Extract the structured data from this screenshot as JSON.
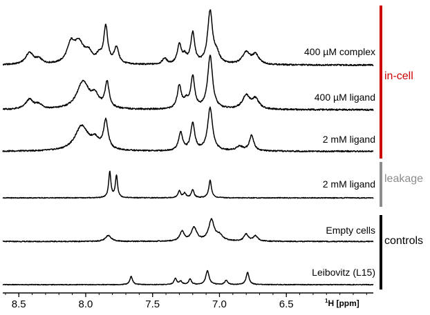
{
  "chart_data": {
    "type": "line",
    "title": "",
    "xlabel_superscript": "1",
    "xlabel": "H [ppm]",
    "xlim": [
      8.62,
      5.85
    ],
    "x_reversed": true,
    "x_ticks": [
      "8.5",
      "8.0",
      "7.5",
      "7.0",
      "6.5"
    ],
    "x_tick_values": [
      8.5,
      8.0,
      7.5,
      7.0,
      6.5
    ],
    "y_axis_shown": false,
    "grid": false,
    "series": [
      {
        "name": "400 µM complex",
        "group": "in-cell",
        "baseline": 0.03,
        "peaks": [
          [
            8.42,
            0.2,
            0.035
          ],
          [
            8.35,
            0.08,
            0.03
          ],
          [
            8.11,
            0.33,
            0.035
          ],
          [
            8.05,
            0.32,
            0.04
          ],
          [
            7.98,
            0.18,
            0.035
          ],
          [
            7.9,
            0.12,
            0.025
          ],
          [
            7.85,
            0.62,
            0.018
          ],
          [
            7.77,
            0.28,
            0.02
          ],
          [
            7.41,
            0.1,
            0.02
          ],
          [
            7.3,
            0.32,
            0.018
          ],
          [
            7.26,
            0.12,
            0.02
          ],
          [
            7.2,
            0.52,
            0.018
          ],
          [
            7.07,
            0.9,
            0.022
          ],
          [
            7.02,
            0.15,
            0.025
          ],
          [
            6.8,
            0.2,
            0.035
          ],
          [
            6.73,
            0.16,
            0.03
          ]
        ]
      },
      {
        "name": "400 µM ligand",
        "group": "in-cell",
        "baseline": 0.03,
        "peaks": [
          [
            8.42,
            0.16,
            0.035
          ],
          [
            8.35,
            0.07,
            0.03
          ],
          [
            8.02,
            0.45,
            0.055
          ],
          [
            7.93,
            0.18,
            0.035
          ],
          [
            7.84,
            0.42,
            0.018
          ],
          [
            7.3,
            0.38,
            0.018
          ],
          [
            7.25,
            0.12,
            0.02
          ],
          [
            7.2,
            0.52,
            0.018
          ],
          [
            7.07,
            0.88,
            0.022
          ],
          [
            6.8,
            0.22,
            0.035
          ],
          [
            6.73,
            0.16,
            0.03
          ]
        ]
      },
      {
        "name": "2 mM ligand",
        "group": "in-cell",
        "baseline": 0.03,
        "peaks": [
          [
            8.03,
            0.45,
            0.06
          ],
          [
            7.93,
            0.16,
            0.035
          ],
          [
            7.85,
            0.52,
            0.02
          ],
          [
            7.29,
            0.33,
            0.018
          ],
          [
            7.2,
            0.5,
            0.018
          ],
          [
            7.07,
            0.78,
            0.022
          ],
          [
            6.76,
            0.28,
            0.02
          ],
          [
            6.85,
            0.08,
            0.03
          ]
        ]
      },
      {
        "name": "2 mM ligand",
        "group": "leakage",
        "baseline": 0.02,
        "peaks": [
          [
            7.82,
            0.82,
            0.01
          ],
          [
            7.77,
            0.7,
            0.01
          ],
          [
            7.3,
            0.22,
            0.012
          ],
          [
            7.26,
            0.14,
            0.012
          ],
          [
            7.2,
            0.25,
            0.012
          ],
          [
            7.07,
            0.55,
            0.012
          ]
        ]
      },
      {
        "name": "Empty cells",
        "group": "controls",
        "baseline": 0.03,
        "peaks": [
          [
            7.83,
            0.16,
            0.025
          ],
          [
            7.28,
            0.25,
            0.02
          ],
          [
            7.19,
            0.35,
            0.025
          ],
          [
            7.06,
            0.55,
            0.025
          ],
          [
            7.0,
            0.14,
            0.03
          ],
          [
            6.8,
            0.18,
            0.02
          ],
          [
            6.73,
            0.14,
            0.02
          ]
        ]
      },
      {
        "name": "Leibovitz (L15)",
        "group": "controls",
        "baseline": 0.0,
        "peaks": [
          [
            7.66,
            0.3,
            0.012
          ],
          [
            7.33,
            0.22,
            0.012
          ],
          [
            7.29,
            0.12,
            0.012
          ],
          [
            7.22,
            0.2,
            0.012
          ],
          [
            7.09,
            0.5,
            0.015
          ],
          [
            6.95,
            0.16,
            0.012
          ],
          [
            6.79,
            0.45,
            0.013
          ]
        ]
      }
    ],
    "brackets": [
      {
        "label": "in-cell",
        "color": "#cc0000"
      },
      {
        "label": "leakage",
        "color": "#8c8c8c"
      },
      {
        "label": "controls",
        "color": "#000000"
      }
    ]
  }
}
